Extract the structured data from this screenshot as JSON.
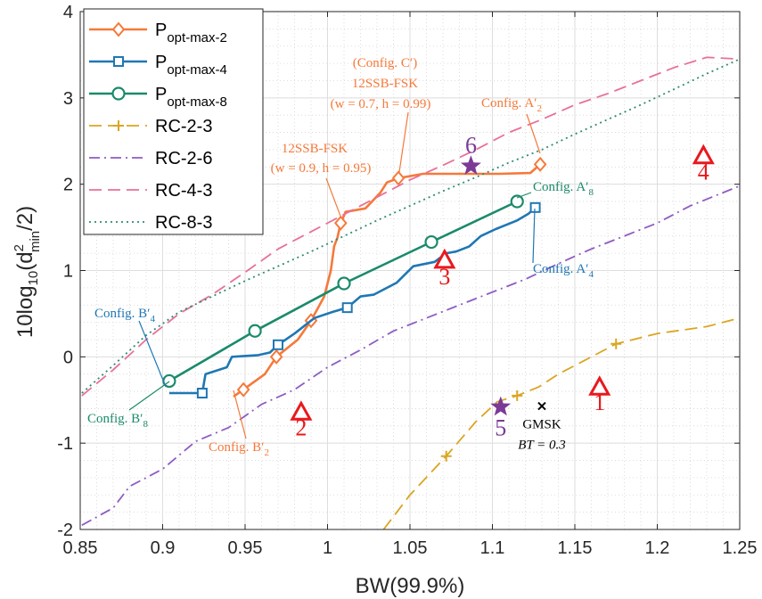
{
  "chart_data": {
    "type": "line",
    "xlabel": "BW(99.9%)",
    "ylabel": "10log",
    "ylabel_sub": "10",
    "ylabel_paren_open": "(d",
    "ylabel_sup": "2",
    "ylabel_min": "min",
    "ylabel_tail": "/2)",
    "xlim": [
      0.85,
      1.25
    ],
    "ylim": [
      -2,
      4
    ],
    "xticks": [
      0.85,
      0.9,
      0.95,
      1,
      1.05,
      1.1,
      1.15,
      1.2,
      1.25
    ],
    "xtick_labels": [
      "0.85",
      "0.9",
      "0.95",
      "1",
      "1.05",
      "1.1",
      "1.15",
      "1.2",
      "1.25"
    ],
    "yticks": [
      -2,
      -1,
      0,
      1,
      2,
      3,
      4
    ],
    "ytick_labels": [
      "-2",
      "-1",
      "0",
      "1",
      "2",
      "3",
      "4"
    ],
    "grid": true,
    "minor_grid": true,
    "legend_position": "top-left",
    "series": [
      {
        "legend_base": "P",
        "legend_sub": "opt-max-2",
        "color": "#F5793A",
        "style": "solid",
        "marker": "diamond",
        "x": [
          0.943,
          0.949,
          0.962,
          0.969,
          0.982,
          0.99,
          0.998,
          1.002,
          1.004,
          1.006,
          1.008,
          1.011,
          1.023,
          1.032,
          1.036,
          1.043,
          1.058,
          1.082,
          1.104,
          1.123,
          1.129
        ],
        "y": [
          -0.46,
          -0.38,
          -0.2,
          0.0,
          0.2,
          0.42,
          0.7,
          1.0,
          1.28,
          1.38,
          1.55,
          1.68,
          1.72,
          1.9,
          2.02,
          2.07,
          2.12,
          2.12,
          2.12,
          2.13,
          2.23
        ],
        "marker_x": [
          0.949,
          0.969,
          0.99,
          1.008,
          1.043,
          1.129
        ],
        "marker_y": [
          -0.38,
          0.0,
          0.42,
          1.55,
          2.07,
          2.23
        ]
      },
      {
        "legend_base": "P",
        "legend_sub": "opt-max-4",
        "color": "#1F77B4",
        "style": "solid",
        "marker": "square",
        "x": [
          0.904,
          0.924,
          0.926,
          0.939,
          0.942,
          0.958,
          0.965,
          0.97,
          0.98,
          0.992,
          1.003,
          1.012,
          1.02,
          1.028,
          1.042,
          1.052,
          1.065,
          1.072,
          1.078,
          1.086,
          1.093,
          1.102,
          1.115,
          1.122,
          1.126
        ],
        "y": [
          -0.42,
          -0.42,
          -0.2,
          -0.12,
          0.0,
          0.02,
          0.05,
          0.14,
          0.27,
          0.45,
          0.52,
          0.57,
          0.7,
          0.72,
          0.86,
          1.05,
          1.1,
          1.2,
          1.22,
          1.28,
          1.4,
          1.48,
          1.58,
          1.66,
          1.73
        ],
        "marker_x": [
          0.924,
          0.97,
          1.012,
          1.126
        ],
        "marker_y": [
          -0.42,
          0.14,
          0.57,
          1.73
        ]
      },
      {
        "legend_base": "P",
        "legend_sub": "opt-max-8",
        "color": "#1B8A6B",
        "style": "solid",
        "marker": "circle",
        "x": [
          0.904,
          0.956,
          1.01,
          1.063,
          1.115
        ],
        "y": [
          -0.28,
          0.3,
          0.85,
          1.33,
          1.8
        ],
        "marker_x": [
          0.904,
          0.956,
          1.01,
          1.063,
          1.115
        ],
        "marker_y": [
          -0.28,
          0.3,
          0.85,
          1.33,
          1.8
        ]
      },
      {
        "legend_base": "RC-2-3",
        "legend_sub": "",
        "color": "#DAA520",
        "style": "dashed",
        "marker": "plus",
        "x": [
          1.034,
          1.05,
          1.072,
          1.09,
          1.103,
          1.115,
          1.128,
          1.14,
          1.155,
          1.175,
          1.2,
          1.23,
          1.25
        ],
        "y": [
          -2.0,
          -1.6,
          -1.15,
          -0.75,
          -0.52,
          -0.45,
          -0.35,
          -0.2,
          -0.05,
          0.15,
          0.27,
          0.35,
          0.45
        ],
        "marker_x": [
          1.072,
          1.115,
          1.175
        ],
        "marker_y": [
          -1.15,
          -0.45,
          0.15
        ]
      },
      {
        "legend_base": "RC-2-6",
        "legend_sub": "",
        "color": "#8E5CC2",
        "style": "dashdot",
        "marker": "none",
        "x": [
          0.851,
          0.87,
          0.88,
          0.9,
          0.92,
          0.94,
          0.96,
          0.98,
          1.0,
          1.02,
          1.04,
          1.06,
          1.08,
          1.1,
          1.12,
          1.14,
          1.16,
          1.18,
          1.2,
          1.22,
          1.25
        ],
        "y": [
          -1.95,
          -1.75,
          -1.5,
          -1.3,
          -0.98,
          -0.82,
          -0.55,
          -0.38,
          -0.12,
          0.08,
          0.3,
          0.45,
          0.6,
          0.75,
          0.9,
          1.08,
          1.25,
          1.4,
          1.55,
          1.75,
          1.98
        ],
        "marker_x": [],
        "marker_y": []
      },
      {
        "legend_base": "RC-4-3",
        "legend_sub": "",
        "color": "#E8719A",
        "style": "dashed",
        "marker": "none",
        "x": [
          0.851,
          0.87,
          0.89,
          0.91,
          0.93,
          0.95,
          0.97,
          0.99,
          1.01,
          1.03,
          1.05,
          1.07,
          1.09,
          1.11,
          1.13,
          1.15,
          1.17,
          1.19,
          1.21,
          1.23,
          1.25
        ],
        "y": [
          -0.45,
          -0.15,
          0.2,
          0.5,
          0.72,
          0.98,
          1.25,
          1.45,
          1.65,
          1.85,
          2.05,
          2.22,
          2.4,
          2.6,
          2.75,
          2.92,
          3.05,
          3.2,
          3.35,
          3.47,
          3.45
        ],
        "marker_x": [],
        "marker_y": []
      },
      {
        "legend_base": "RC-8-3",
        "legend_sub": "",
        "color": "#2E8B78",
        "style": "dotted",
        "marker": "none",
        "x": [
          0.851,
          0.87,
          0.89,
          0.91,
          0.93,
          0.95,
          0.97,
          0.99,
          1.01,
          1.03,
          1.05,
          1.07,
          1.09,
          1.11,
          1.13,
          1.15,
          1.17,
          1.19,
          1.21,
          1.23,
          1.25
        ],
        "y": [
          -0.42,
          -0.1,
          0.25,
          0.52,
          0.7,
          0.88,
          1.05,
          1.22,
          1.4,
          1.58,
          1.75,
          1.92,
          2.08,
          2.25,
          2.4,
          2.58,
          2.75,
          2.92,
          3.1,
          3.28,
          3.45
        ],
        "marker_x": [],
        "marker_y": []
      }
    ],
    "triangles": [
      {
        "label": "1",
        "x": 1.165,
        "y": -0.35
      },
      {
        "label": "2",
        "x": 0.984,
        "y": -0.64
      },
      {
        "label": "3",
        "x": 1.071,
        "y": 1.12
      },
      {
        "label": "4",
        "x": 1.228,
        "y": 2.33
      }
    ],
    "stars": [
      {
        "label": "5",
        "x": 1.105,
        "y": -0.58
      },
      {
        "label": "6",
        "x": 1.087,
        "y": 2.21
      }
    ],
    "gmsk_point": {
      "x": 1.13,
      "y": -0.57,
      "label": "GMSK",
      "bt_label": "BT = 0.3"
    },
    "annotations": {
      "config_c_prime": "(Config. C′)",
      "ssb_a": "12SSB-FSK",
      "ssb_a_params": "(w = 0.7, h = 0.99)",
      "ssb_b": "12SSB-FSK",
      "ssb_b_params": "(w = 0.9, h = 0.95)",
      "config_a2": "Config. A′",
      "config_a2_sub": "2",
      "config_a8": "Config. A′",
      "config_a8_sub": "8",
      "config_a4": "Config. A′",
      "config_a4_sub": "4",
      "config_b4": "Config. B′",
      "config_b4_sub": "4",
      "config_b8": "Config. B′",
      "config_b8_sub": "8",
      "config_b2": "Config. B′",
      "config_b2_sub": "2"
    },
    "colors": {
      "triangle": "#E8191E",
      "star": "#7B3A96",
      "grid": "#DEDEDE",
      "minor_grid": "#D4D4D4",
      "axis": "#262626"
    }
  }
}
